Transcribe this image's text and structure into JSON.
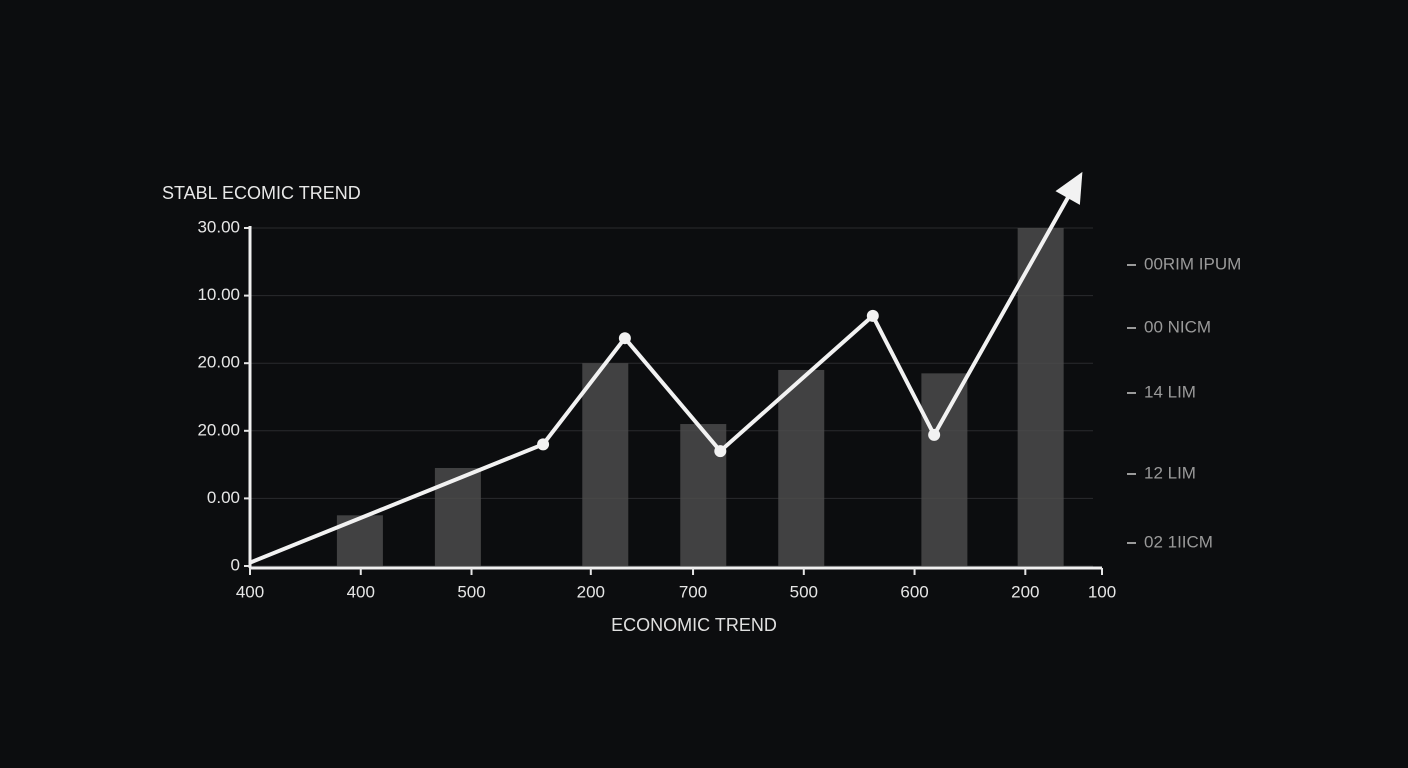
{
  "chart_data": {
    "type": "combo",
    "title": "STABL ECOMIC TREND",
    "x_label": "ECONOMIC TREND",
    "xlim": [
      0,
      100
    ],
    "ylim": [
      0,
      5
    ],
    "xticks": [
      {
        "value": 0,
        "label": "400"
      },
      {
        "value": 13,
        "label": "400"
      },
      {
        "value": 26,
        "label": "500"
      },
      {
        "value": 40,
        "label": "200"
      },
      {
        "value": 52,
        "label": "700"
      },
      {
        "value": 65,
        "label": "500"
      },
      {
        "value": 78,
        "label": "600"
      },
      {
        "value": 91,
        "label": "200"
      },
      {
        "value": 100,
        "label": "100"
      }
    ],
    "yticks": [
      0,
      {
        "value": 1,
        "label": "0.00"
      },
      {
        "value": 2,
        "label": "20.00"
      },
      {
        "value": 3,
        "label": "20.00"
      },
      {
        "value": 4,
        "label": "10.00"
      },
      {
        "value": 5,
        "label": "30.00"
      }
    ],
    "grid": true,
    "series": [
      {
        "kind": "bar",
        "color": "#4b4b4b",
        "x": [
          12.9,
          24.4,
          41.7,
          53.2,
          64.7,
          81.5,
          92.8
        ],
        "values": [
          0.75,
          1.45,
          3.0,
          2.1,
          2.9,
          2.85,
          5.0
        ]
      },
      {
        "kind": "line",
        "color": "#f2f2f2",
        "x": [
          0,
          34.4,
          44,
          55.2,
          73.1,
          80.3,
          97.7
        ],
        "values": [
          0.05,
          1.8,
          3.37,
          1.7,
          3.7,
          1.94,
          5.83
        ]
      }
    ],
    "side_labels": [
      "00RIM IPUM",
      "00 NICM",
      "14 LIM",
      "12 LIM",
      "02 1IICM"
    ]
  }
}
